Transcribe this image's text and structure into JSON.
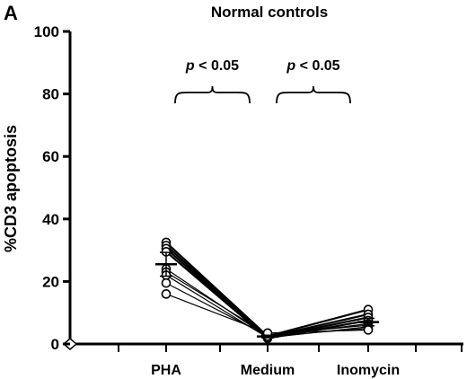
{
  "chart_data": {
    "type": "scatter",
    "panel_label": "A",
    "title": "Normal controls",
    "ylabel": "%CD3 apoptosis",
    "xlabel": "",
    "categories": [
      "PHA",
      "Medium",
      "Inomycin"
    ],
    "ylim": [
      0,
      100
    ],
    "yticks": [
      0,
      20,
      40,
      60,
      80,
      100
    ],
    "grid": false,
    "annotations": [
      {
        "text_p": "p",
        "text_rest": " < 0.05",
        "between": [
          "PHA",
          "Medium"
        ]
      },
      {
        "text_p": "p",
        "text_rest": " < 0.05",
        "between": [
          "Medium",
          "Inomycin"
        ]
      }
    ],
    "series": [
      {
        "values": [
          32.5,
          2.5,
          11.0
        ]
      },
      {
        "values": [
          31.5,
          2.2,
          9.5
        ]
      },
      {
        "values": [
          30.5,
          2.0,
          8.5
        ]
      },
      {
        "values": [
          29.5,
          1.8,
          7.5
        ]
      },
      {
        "values": [
          24.0,
          2.3,
          6.5
        ]
      },
      {
        "values": [
          23.0,
          3.0,
          6.0
        ]
      },
      {
        "values": [
          22.0,
          2.0,
          5.5
        ]
      },
      {
        "values": [
          19.5,
          2.5,
          5.0
        ]
      },
      {
        "values": [
          16.0,
          3.5,
          4.5
        ]
      }
    ],
    "means": [
      25.5,
      2.4,
      7.0
    ],
    "sem": [
      3.8,
      0.4,
      1.2
    ]
  }
}
